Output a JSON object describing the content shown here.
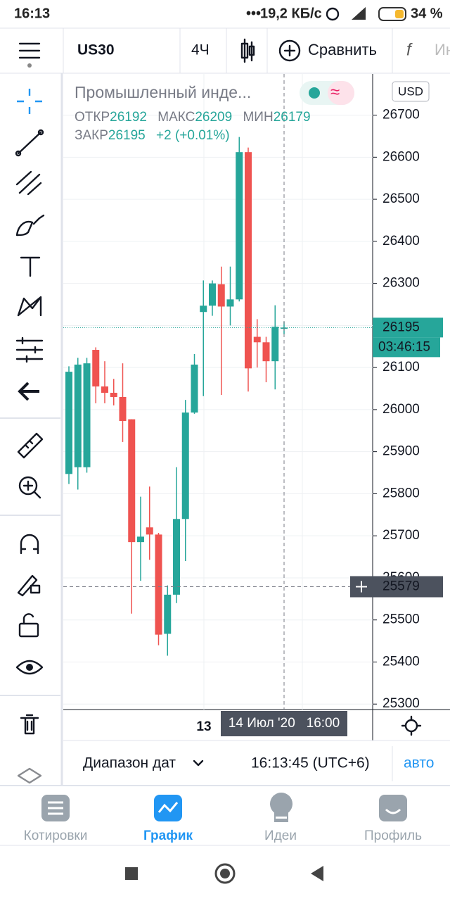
{
  "status_bar": {
    "time": "16:13",
    "speed": "19,2 КБ/с",
    "battery": "34 %"
  },
  "toolbar": {
    "symbol": "US30",
    "interval": "4Ч",
    "compare": "Сравнить",
    "indicators": "Ин"
  },
  "legend": {
    "title": "Промышленный инде...",
    "open_label": "ОТКР",
    "open": "26192",
    "high_label": "МАКС",
    "high": "26209",
    "low_label": "МИН",
    "low": "26179",
    "close_label": "ЗАКР",
    "close": "26195",
    "change": "+2 (+0.01%)"
  },
  "chart": {
    "type": "candlestick",
    "currency": "USD",
    "up_color": "#26a69a",
    "down_color": "#ef5350",
    "ylim": [
      25287,
      26798
    ],
    "yticks": [
      25300,
      25400,
      25500,
      25600,
      25700,
      25800,
      25900,
      26000,
      26100,
      26200,
      26300,
      26400,
      26500,
      26600,
      26700
    ],
    "candles": [
      {
        "open": 25847,
        "high": 26103,
        "low": 25823,
        "close": 26090
      },
      {
        "open": 25863,
        "high": 26123,
        "low": 25810,
        "close": 26107
      },
      {
        "open": 25863,
        "high": 26123,
        "low": 25850,
        "close": 26110
      },
      {
        "open": 26142,
        "high": 26148,
        "low": 26015,
        "close": 26055
      },
      {
        "open": 26055,
        "high": 26115,
        "low": 26015,
        "close": 26040
      },
      {
        "open": 26040,
        "high": 26073,
        "low": 26010,
        "close": 26030
      },
      {
        "open": 26030,
        "high": 26110,
        "low": 25923,
        "close": 25973
      },
      {
        "open": 25977,
        "high": 25977,
        "low": 25515,
        "close": 25685
      },
      {
        "open": 25685,
        "high": 25793,
        "low": 25593,
        "close": 25698
      },
      {
        "open": 25720,
        "high": 25817,
        "low": 25643,
        "close": 25703
      },
      {
        "open": 25703,
        "high": 25707,
        "low": 25440,
        "close": 25465
      },
      {
        "open": 25467,
        "high": 25582,
        "low": 25415,
        "close": 25560
      },
      {
        "open": 25560,
        "high": 25863,
        "low": 25540,
        "close": 25740
      },
      {
        "open": 25740,
        "high": 26023,
        "low": 25640,
        "close": 25993
      },
      {
        "open": 25993,
        "high": 26132,
        "low": 25990,
        "close": 26107
      },
      {
        "open": 26232,
        "high": 26307,
        "low": 26032,
        "close": 26247
      },
      {
        "open": 26247,
        "high": 26307,
        "low": 26223,
        "close": 26300
      },
      {
        "open": 26298,
        "high": 26340,
        "low": 26035,
        "close": 26245
      },
      {
        "open": 26245,
        "high": 26340,
        "low": 26200,
        "close": 26262
      },
      {
        "open": 26262,
        "high": 26648,
        "low": 26257,
        "close": 26612
      },
      {
        "open": 26612,
        "high": 26623,
        "low": 26043,
        "close": 26098
      },
      {
        "open": 26173,
        "high": 26215,
        "low": 26100,
        "close": 26160
      },
      {
        "open": 26160,
        "high": 26173,
        "low": 26065,
        "close": 26115
      },
      {
        "open": 26115,
        "high": 26248,
        "low": 26048,
        "close": 26197
      },
      {
        "open": 26192,
        "high": 26209,
        "low": 26179,
        "close": 26195
      }
    ],
    "last_price": 26195,
    "countdown": "03:46:15",
    "crosshair_price": 25579,
    "x_label": "13",
    "crosshair_time": "14 Июл '20   16:00"
  },
  "bottom_bar": {
    "range": "Диапазон дат",
    "clock": "16:13:45 (UTC+6)",
    "auto": "авто"
  },
  "tabs": [
    "Котировки",
    "График",
    "Идеи",
    "Профиль"
  ]
}
